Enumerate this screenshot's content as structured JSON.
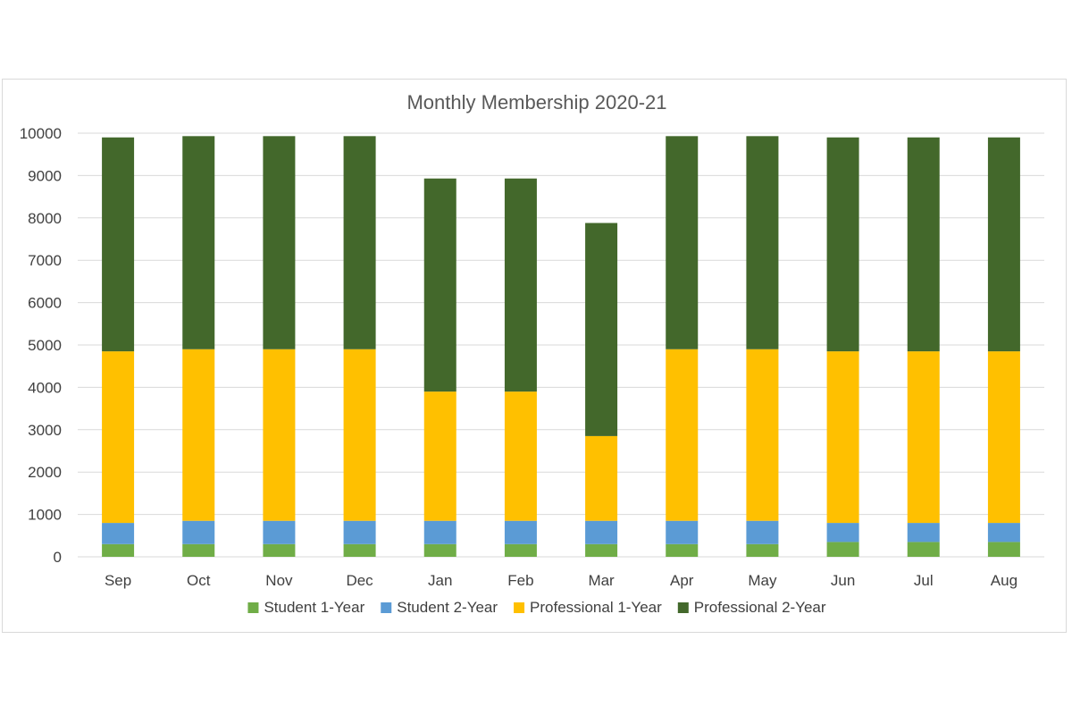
{
  "chart_data": {
    "type": "bar",
    "stacked": true,
    "title": "Monthly Membership 2020-21",
    "xlabel": "",
    "ylabel": "",
    "ylim": [
      0,
      10000
    ],
    "yticks": [
      0,
      1000,
      2000,
      3000,
      4000,
      5000,
      6000,
      7000,
      8000,
      9000,
      10000
    ],
    "grid": true,
    "legend_position": "bottom",
    "categories": [
      "Sep",
      "Oct",
      "Nov",
      "Dec",
      "Jan",
      "Feb",
      "Mar",
      "Apr",
      "May",
      "Jun",
      "Jul",
      "Aug"
    ],
    "series": [
      {
        "name": "Student 1-Year",
        "color": "#70ad47",
        "values": [
          300,
          300,
          300,
          300,
          300,
          300,
          300,
          300,
          300,
          350,
          350,
          350
        ]
      },
      {
        "name": "Student 2-Year",
        "color": "#5b9bd5",
        "values": [
          500,
          550,
          550,
          550,
          550,
          550,
          550,
          550,
          550,
          450,
          450,
          450
        ]
      },
      {
        "name": "Professional 1-Year",
        "color": "#ffc000",
        "values": [
          4050,
          4050,
          4050,
          4050,
          3050,
          3050,
          2000,
          4050,
          4050,
          4050,
          4050,
          4050
        ]
      },
      {
        "name": "Professional 2-Year",
        "color": "#43682b",
        "values": [
          5050,
          5030,
          5030,
          5030,
          5030,
          5030,
          5030,
          5030,
          5030,
          5050,
          5050,
          5050
        ]
      }
    ]
  }
}
